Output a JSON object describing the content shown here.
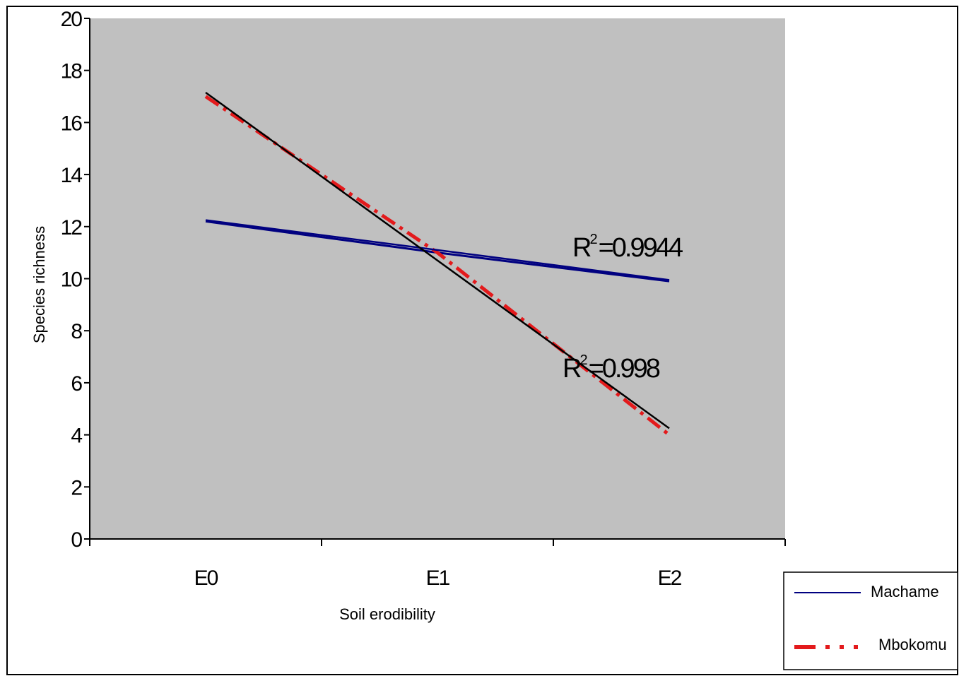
{
  "chart_data": {
    "type": "line",
    "xlabel": "Soil erodibility",
    "ylabel": "Species richness",
    "categories": [
      "E0",
      "E1",
      "E2"
    ],
    "ylim": [
      0,
      20
    ],
    "yticks": [
      "0",
      "2",
      "4",
      "6",
      "8",
      "10",
      "12",
      "14",
      "16",
      "18",
      "20"
    ],
    "grid": false,
    "legend_position": "bottom-right",
    "series": [
      {
        "name": "Machame",
        "values": [
          12.2,
          11.0,
          9.9
        ],
        "color": "#000080",
        "style": "solid"
      },
      {
        "name": "Mbokomu",
        "values": [
          17.0,
          11.0,
          4.0
        ],
        "color": "#e31a1c",
        "style": "dash-dot"
      }
    ],
    "trendlines": [
      {
        "series": "Machame",
        "values": [
          12.25,
          11.1,
          9.95
        ],
        "color": "#000080",
        "r2_prefix": "R",
        "r2_sup": "2",
        "r2_value": "=0.9944"
      },
      {
        "series": "Mbokomu",
        "values": [
          17.15,
          10.7,
          4.25
        ],
        "color": "#000000",
        "r2_prefix": "R",
        "r2_sup": "2",
        "r2_value": "=0.998"
      }
    ],
    "plot_background": "#c0c0c0"
  }
}
